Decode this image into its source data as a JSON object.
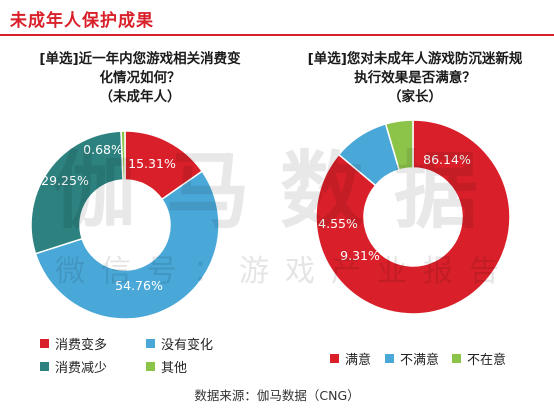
{
  "header": {
    "title": "未成年人保护成果"
  },
  "watermark": {
    "main": "伽马数据",
    "sub": "微信号：游戏产业报告"
  },
  "source": "数据来源：伽马数据（CNG）",
  "colors": {
    "red": "#d9202a",
    "blue": "#4aa8d8",
    "teal": "#2d8280",
    "green": "#8cc44a"
  },
  "chart_data": [
    {
      "type": "pie",
      "title_lines": [
        "[单选]近一年内您游戏相关消费变",
        "化情况如何？",
        "（未成年人）"
      ],
      "slices": [
        {
          "name": "消费变多",
          "value": 15.31,
          "label": "15.31%",
          "color": "#d9202a"
        },
        {
          "name": "没有变化",
          "value": 54.76,
          "label": "54.76%",
          "color": "#4aa8d8"
        },
        {
          "name": "消费减少",
          "value": 29.25,
          "label": "29.25%",
          "color": "#2d8280"
        },
        {
          "name": "其他",
          "value": 0.68,
          "label": "0.68%",
          "color": "#8cc44a"
        }
      ],
      "legend_placement": "bottom"
    },
    {
      "type": "pie",
      "title_lines": [
        "[单选]您对未成年人游戏防沉迷新规",
        "执行效果是否满意？",
        "（家长）"
      ],
      "slices": [
        {
          "name": "满意",
          "value": 86.14,
          "label": "86.14%",
          "color": "#d9202a"
        },
        {
          "name": "不满意",
          "value": 9.31,
          "label": "9.31%",
          "color": "#4aa8d8"
        },
        {
          "name": "不在意",
          "value": 4.55,
          "label": "4.55%",
          "color": "#8cc44a"
        }
      ],
      "legend_placement": "bottom"
    }
  ]
}
